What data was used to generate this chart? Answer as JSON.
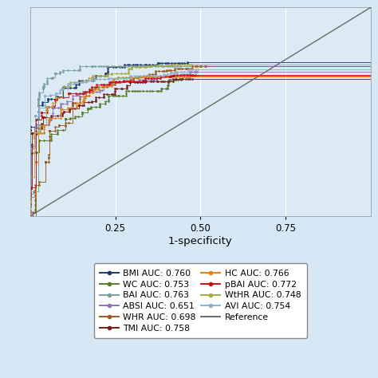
{
  "xlabel": "1-specificity",
  "xlim": [
    0,
    1
  ],
  "ylim": [
    0,
    1
  ],
  "xticks": [
    0.25,
    0.5,
    0.75
  ],
  "yticks": [],
  "background_color": "#d6e8f5",
  "plot_bg_color": "#dceaf6",
  "grid_color": "#ffffff",
  "curves": [
    {
      "label": "BMI AUC: 0.760",
      "auc": 0.76,
      "color": "#1e3a6e",
      "seed": 101
    },
    {
      "label": "WC AUC: 0.753",
      "auc": 0.753,
      "color": "#5a7a2a",
      "seed": 202
    },
    {
      "label": "BAI AUC: 0.763",
      "auc": 0.763,
      "color": "#7a9e9f",
      "seed": 303
    },
    {
      "label": "ABSI AUC: 0.651",
      "auc": 0.651,
      "color": "#9070b8",
      "seed": 404
    },
    {
      "label": "WHR AUC: 0.698",
      "auc": 0.698,
      "color": "#9b5a20",
      "seed": 505
    },
    {
      "label": "TMI AUC: 0.758",
      "auc": 0.758,
      "color": "#7a1a1a",
      "seed": 606
    },
    {
      "label": "HC AUC: 0.766",
      "auc": 0.766,
      "color": "#e08020",
      "seed": 707
    },
    {
      "label": "pBAI AUC: 0.772",
      "auc": 0.772,
      "color": "#c81010",
      "seed": 808
    },
    {
      "label": "WtHR AUC: 0.748",
      "auc": 0.748,
      "color": "#aaaa40",
      "seed": 909
    },
    {
      "label": "AVI AUC: 0.754",
      "auc": 0.754,
      "color": "#90aec8",
      "seed": 1010
    }
  ],
  "reference_color": "#607060",
  "legend_fontsize": 7.8,
  "tick_fontsize": 8.5,
  "xlabel_fontsize": 9.5,
  "markersize": 2.0,
  "linewidth": 0.7,
  "n_steps": 120
}
